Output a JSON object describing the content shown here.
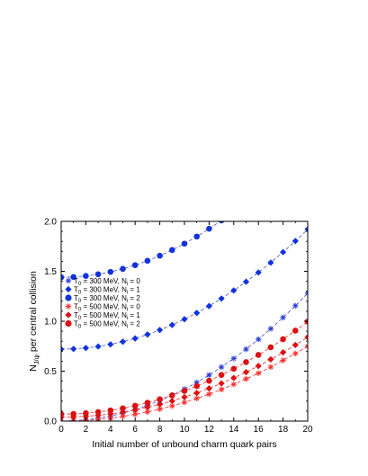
{
  "chart_data": {
    "type": "scatter",
    "title": "",
    "xlabel": "Initial number of unbound charm quark pairs",
    "ylabel": "N_{J/ψ} per central collision",
    "ylabel_main": "N",
    "ylabel_sub": "J/ψ",
    "ylabel_rest": " per central collision",
    "xlim": [
      0,
      20
    ],
    "ylim": [
      0.0,
      2.0
    ],
    "xticks": [
      "0",
      "2",
      "4",
      "6",
      "8",
      "10",
      "12",
      "14",
      "16",
      "18",
      "20"
    ],
    "yticks": [
      "0.0",
      "0.5",
      "1.0",
      "1.5",
      "2.0"
    ],
    "grid": false,
    "legend_position": "middle-left",
    "series": [
      {
        "name": "T_0 = 300 MeV, N_i = 0",
        "legend": {
          "T": "T",
          "Tsub": "0",
          "mid": " = 300 MeV, N",
          "Nsub": "i",
          "end": " = 0"
        },
        "marker": "asterisk",
        "color": "#2a3fd8",
        "line_color": "#6060dd",
        "x": [
          0,
          1,
          2,
          3,
          4,
          5,
          6,
          7,
          8,
          9,
          10,
          11,
          12,
          13,
          14,
          15,
          16,
          17,
          18,
          19,
          20
        ],
        "y": [
          0.0,
          0.004,
          0.013,
          0.029,
          0.051,
          0.08,
          0.115,
          0.157,
          0.205,
          0.259,
          0.32,
          0.387,
          0.461,
          0.541,
          0.627,
          0.72,
          0.819,
          0.925,
          1.037,
          1.155,
          1.28
        ]
      },
      {
        "name": "T_0 = 300 MeV, N_i = 1",
        "legend": {
          "T": "T",
          "Tsub": "0",
          "mid": " = 300 MeV, N",
          "Nsub": "i",
          "end": " = 1"
        },
        "marker": "diamond",
        "color": "#1133dd",
        "line_color": "#5566cc",
        "x": [
          0,
          1,
          2,
          3,
          4,
          5,
          6,
          7,
          8,
          9,
          10,
          11,
          12,
          13,
          14,
          15,
          16,
          17,
          18,
          19,
          20
        ],
        "y": [
          0.72,
          0.723,
          0.732,
          0.747,
          0.768,
          0.795,
          0.828,
          0.867,
          0.912,
          0.963,
          1.02,
          1.083,
          1.152,
          1.227,
          1.308,
          1.395,
          1.488,
          1.587,
          1.692,
          1.803,
          1.92
        ]
      },
      {
        "name": "T_0 = 300 MeV, N_i = 2",
        "legend": {
          "T": "T",
          "Tsub": "0",
          "mid": " = 300 MeV, N",
          "Nsub": "i",
          "end": " = 2"
        },
        "marker": "circle",
        "color": "#1133dd",
        "line_color": "#5566cc",
        "x": [
          0,
          1,
          2,
          3,
          4,
          5,
          6,
          7,
          8,
          9,
          10,
          11,
          12,
          13,
          14
        ],
        "y": [
          1.44,
          1.443,
          1.453,
          1.47,
          1.494,
          1.524,
          1.561,
          1.605,
          1.656,
          1.713,
          1.777,
          1.848,
          1.926,
          2.01,
          2.101
        ]
      },
      {
        "name": "T_0 = 500 MeV, N_i = 0",
        "legend": {
          "T": "T",
          "Tsub": "0",
          "mid": " = 500 MeV, N",
          "Nsub": "i",
          "end": " = 0"
        },
        "marker": "asterisk",
        "color": "#ff3030",
        "line_color": "#ee4444",
        "x": [
          0,
          1,
          2,
          3,
          4,
          5,
          6,
          7,
          8,
          9,
          10,
          11,
          12,
          13,
          14,
          15,
          16,
          17,
          18,
          19,
          20
        ],
        "y": [
          0.0,
          0.002,
          0.008,
          0.017,
          0.03,
          0.047,
          0.068,
          0.092,
          0.12,
          0.152,
          0.188,
          0.227,
          0.27,
          0.317,
          0.368,
          0.422,
          0.48,
          0.542,
          0.608,
          0.677,
          0.75
        ]
      },
      {
        "name": "T_0 = 500 MeV, N_i = 1",
        "legend": {
          "T": "T",
          "Tsub": "0",
          "mid": " = 500 MeV, N",
          "Nsub": "i",
          "end": " = 1"
        },
        "marker": "diamond",
        "color": "#dd1111",
        "line_color": "#ee4444",
        "x": [
          0,
          1,
          2,
          3,
          4,
          5,
          6,
          7,
          8,
          9,
          10,
          11,
          12,
          13,
          14,
          15,
          16,
          17,
          18,
          19,
          20
        ],
        "y": [
          0.04,
          0.042,
          0.048,
          0.058,
          0.072,
          0.09,
          0.112,
          0.138,
          0.168,
          0.202,
          0.24,
          0.282,
          0.328,
          0.378,
          0.432,
          0.49,
          0.552,
          0.618,
          0.688,
          0.762,
          0.84
        ]
      },
      {
        "name": "T_0 = 500 MeV, N_i = 2",
        "legend": {
          "T": "T",
          "Tsub": "0",
          "mid": " = 500 MeV, N",
          "Nsub": "i",
          "end": " = 2"
        },
        "marker": "circle",
        "color": "#dd1111",
        "line_color": "#ee4444",
        "x": [
          0,
          1,
          2,
          3,
          4,
          5,
          6,
          7,
          8,
          9,
          10,
          11,
          12,
          13,
          14,
          15,
          16,
          17,
          18,
          19,
          20
        ],
        "y": [
          0.07,
          0.072,
          0.079,
          0.091,
          0.107,
          0.128,
          0.154,
          0.184,
          0.219,
          0.258,
          0.302,
          0.351,
          0.404,
          0.462,
          0.524,
          0.591,
          0.663,
          0.739,
          0.82,
          0.906,
          0.996
        ]
      }
    ]
  }
}
